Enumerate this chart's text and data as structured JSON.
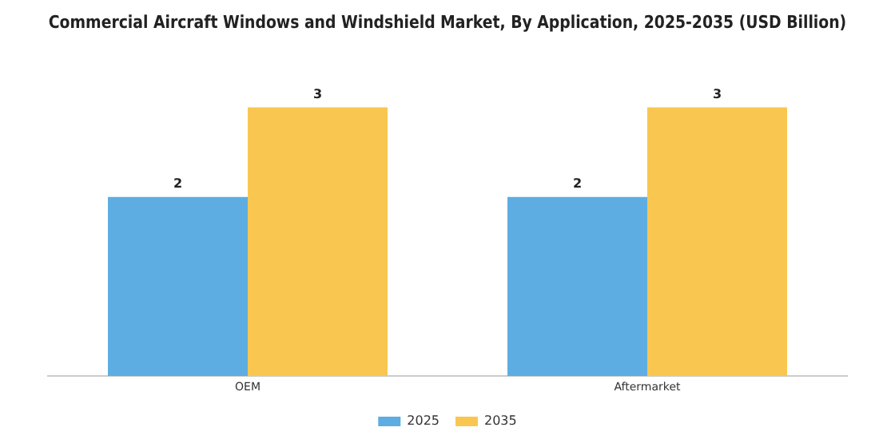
{
  "chart_data": {
    "type": "bar",
    "title": "Commercial Aircraft Windows and Windshield Market, By Application, 2025-2035 (USD Billion)",
    "categories": [
      "OEM",
      "Aftermarket"
    ],
    "series": [
      {
        "name": "2025",
        "color": "#5dade2",
        "values": [
          2,
          2
        ]
      },
      {
        "name": "2035",
        "color": "#f9c74f",
        "values": [
          3,
          3
        ]
      }
    ],
    "data_labels": true,
    "grid": false,
    "legend": "bottom"
  }
}
